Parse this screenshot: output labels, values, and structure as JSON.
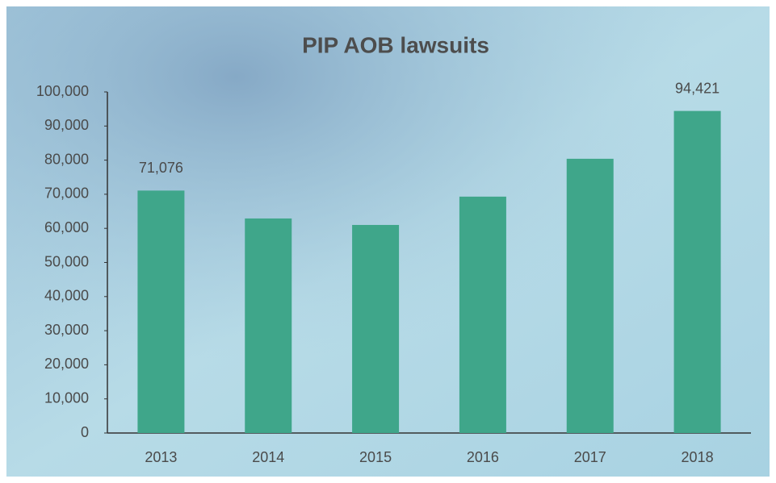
{
  "chart_data": {
    "type": "bar",
    "title": "PIP AOB lawsuits",
    "categories": [
      "2013",
      "2014",
      "2015",
      "2016",
      "2017",
      "2018"
    ],
    "values": [
      71076,
      62900,
      61000,
      69300,
      80400,
      94421
    ],
    "value_labels": [
      "71,076",
      null,
      null,
      null,
      null,
      "94,421"
    ],
    "color": "#3fa68a",
    "ylim": [
      0,
      100000
    ],
    "yticks": [
      0,
      {
        "value": 10000,
        "label": "10,000"
      },
      {
        "value": 20000,
        "label": "20,000"
      },
      {
        "value": 30000,
        "label": "30,000"
      },
      {
        "value": 40000,
        "label": "40,000"
      },
      {
        "value": 50000,
        "label": "50,000"
      },
      {
        "value": 60000,
        "label": "60,000"
      },
      {
        "value": 70000,
        "label": "70,000"
      },
      {
        "value": 80000,
        "label": "80,000"
      },
      {
        "value": 90000,
        "label": "90,000"
      },
      {
        "value": 100000,
        "label": "100,000"
      }
    ],
    "grid": false
  }
}
